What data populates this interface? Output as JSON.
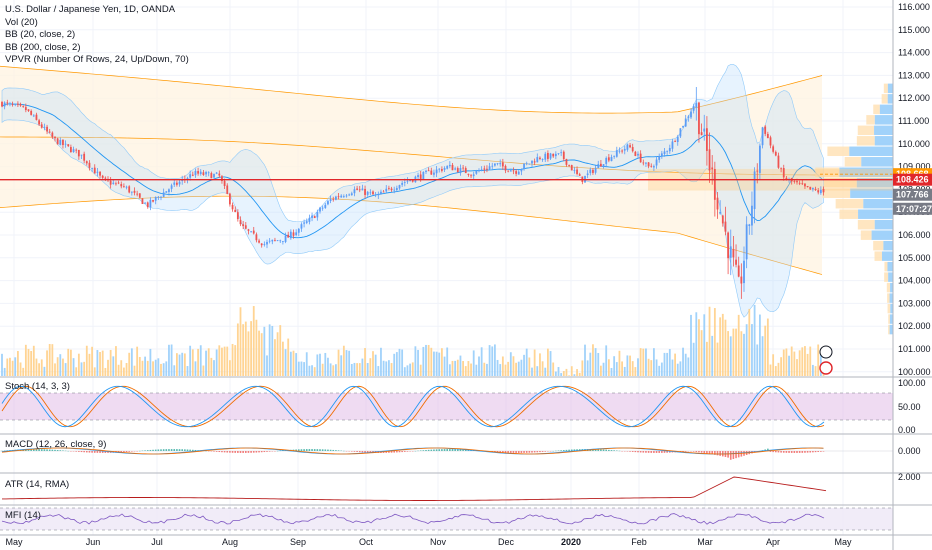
{
  "legend": {
    "title": "U.S. Dollar / Japanese Yen, 1D, OANDA",
    "vol": "Vol (20)",
    "bb1": "BB (20, close, 2)",
    "bb2": "BB (200, close, 2)",
    "vpvr": "VPVR (Number Of Rows, 24, Up/Down, 70)"
  },
  "panes": {
    "stoch": "Stoch (14, 3, 3)",
    "macd": "MACD (12, 26, close, 9)",
    "atr": "ATR (14, RMA)",
    "mfi": "MFI (14)"
  },
  "colors": {
    "up": "#5b9cf6",
    "down": "#ef5350",
    "bb20": "#2196f3",
    "bb200": "#ff9800",
    "hline": "#e0262a",
    "stoch_k": "#2196f3",
    "stoch_d": "#ef6c00",
    "stoch_bg": "#e1bee7",
    "mfi_bg": "#ede7f6",
    "atr_line": "#b71c1c",
    "vp_up": "#90caf9",
    "vp_down": "#ffe0b2"
  },
  "chart_data": [
    {
      "type": "candlestick",
      "symbol": "USDJPY",
      "timeframe": "1D",
      "x_ticks": [
        "May",
        "Jun",
        "Jul",
        "Aug",
        "Sep",
        "Oct",
        "Nov",
        "Dec",
        "2020",
        "Feb",
        "Mar",
        "Apr",
        "May"
      ],
      "y_ticks": [
        "116.000",
        "115.000",
        "114.000",
        "113.000",
        "112.000",
        "111.000",
        "110.000",
        "109.000",
        "108.000",
        "107.000",
        "106.000",
        "105.000",
        "104.000",
        "103.000",
        "102.000",
        "101.000",
        "100.000"
      ],
      "ylim": [
        100,
        116.4
      ],
      "anchors": [
        {
          "x": "May",
          "close": 111.5
        },
        {
          "x": "May",
          "close": 110.2
        },
        {
          "x": "May",
          "close": 109.5
        },
        {
          "x": "Jun",
          "close": 108.4
        },
        {
          "x": "Jun",
          "close": 108.1
        },
        {
          "x": "Jun",
          "close": 107.3
        },
        {
          "x": "Jul",
          "close": 108.0
        },
        {
          "x": "Jul",
          "close": 108.7
        },
        {
          "x": "Jul",
          "close": 108.6
        },
        {
          "x": "Aug",
          "close": 106.4
        },
        {
          "x": "Aug",
          "close": 105.6
        },
        {
          "x": "Aug",
          "close": 105.9
        },
        {
          "x": "Sep",
          "close": 106.6
        },
        {
          "x": "Sep",
          "close": 107.6
        },
        {
          "x": "Sep",
          "close": 108.0
        },
        {
          "x": "Oct",
          "close": 107.7
        },
        {
          "x": "Oct",
          "close": 108.3
        },
        {
          "x": "Oct",
          "close": 108.7
        },
        {
          "x": "Nov",
          "close": 109.0
        },
        {
          "x": "Nov",
          "close": 108.7
        },
        {
          "x": "Nov",
          "close": 109.1
        },
        {
          "x": "Dec",
          "close": 108.8
        },
        {
          "x": "Dec",
          "close": 109.4
        },
        {
          "x": "Dec",
          "close": 109.5
        },
        {
          "x": "2020",
          "close": 108.4
        },
        {
          "x": "2020",
          "close": 109.3
        },
        {
          "x": "2020",
          "close": 109.9
        },
        {
          "x": "Feb",
          "close": 108.9
        },
        {
          "x": "Feb",
          "close": 110.0
        },
        {
          "x": "Feb",
          "close": 111.8
        },
        {
          "x": "Mar",
          "close": 108.0
        },
        {
          "x": "Mar",
          "close": 103.5
        },
        {
          "x": "Mar",
          "close": 110.8
        },
        {
          "x": "Apr",
          "close": 108.5
        },
        {
          "x": "Apr",
          "close": 108.0
        },
        {
          "x": "Apr",
          "close": 107.8
        }
      ],
      "price_tags": [
        {
          "label": "108.668",
          "price": 108.668,
          "bg": "#ff9800",
          "fg": "#ffffff"
        },
        {
          "label": "108.426",
          "price": 108.426,
          "bg": "#e0262a",
          "fg": "#ffffff"
        },
        {
          "label": "107.766",
          "price": 107.766,
          "bg": "#787b86",
          "fg": "#ffffff"
        },
        {
          "label": "17:07:27",
          "price": 107.15,
          "bg": "#787b86",
          "fg": "#ffffff"
        }
      ],
      "horizontal_line": 108.426
    },
    {
      "type": "line",
      "name": "Stoch",
      "y_ticks": [
        "100.00",
        "50.00",
        "0.00"
      ],
      "bands": [
        80,
        20
      ],
      "ylim": [
        0,
        100
      ]
    },
    {
      "type": "bar",
      "name": "MACD",
      "y_ticks": [
        "0.000"
      ]
    },
    {
      "type": "line",
      "name": "ATR",
      "y_ticks": [
        "2.000"
      ]
    },
    {
      "type": "line",
      "name": "MFI",
      "bands": [
        80,
        20
      ]
    }
  ]
}
